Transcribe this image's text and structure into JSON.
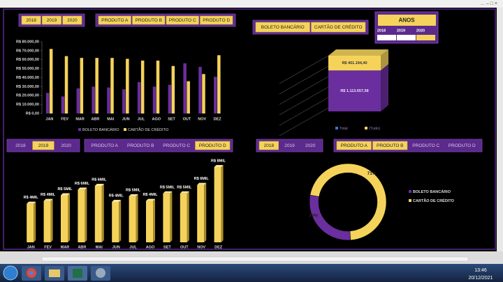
{
  "window": {
    "controls": "… – □ ×"
  },
  "slicers": [
    {
      "items": [
        "2018",
        "2019",
        "2020"
      ],
      "selected": [
        0,
        1,
        2
      ]
    },
    {
      "items": [
        "PRODUTO A",
        "PRODUTO B",
        "PRODUTO C",
        "PRODUTO D"
      ],
      "selected": [
        0,
        1,
        2,
        3
      ]
    },
    {
      "items": [
        "BOLETO BANCÁRIO",
        "CARTÃO DE CRÉDITO"
      ],
      "selected": [
        0,
        1
      ]
    },
    {
      "items": [
        "2018",
        "2019",
        "2020"
      ],
      "selected": [
        1
      ]
    },
    {
      "items": [
        "PRODUTO A",
        "PRODUTO B",
        "PRODUTO C",
        "PRODUTO D"
      ],
      "selected": [
        3
      ]
    },
    {
      "items": [
        "2018",
        "2019",
        "2020"
      ],
      "selected": [
        0
      ]
    },
    {
      "items": [
        "PRODUTO A",
        "PRODUTO B",
        "PRODUTO C",
        "PRODUTO D"
      ],
      "selected": [
        0,
        1
      ]
    }
  ],
  "timeline": {
    "title": "ANOS",
    "labels": [
      "2018",
      "2019",
      "2020"
    ]
  },
  "chart_data": [
    {
      "type": "bar",
      "categories": [
        "JAN",
        "FEV",
        "MAR",
        "ABR",
        "MAI",
        "JUN",
        "JUL",
        "AGO",
        "SET",
        "OUT",
        "NOV",
        "DEZ"
      ],
      "series": [
        {
          "name": "BOLETO BANCÁRIO",
          "color": "#6a2e9e",
          "values": [
            23000,
            19000,
            28000,
            30000,
            29000,
            27000,
            35000,
            30000,
            32000,
            56000,
            52000,
            41000
          ]
        },
        {
          "name": "CARTÃO DE CRÉDITO",
          "color": "#f5d35b",
          "values": [
            72000,
            64000,
            62000,
            62000,
            62000,
            61000,
            59000,
            59000,
            53000,
            36000,
            44000,
            65000
          ]
        }
      ],
      "ylim": [
        0,
        80000
      ],
      "yticks": [
        {
          "value": 0,
          "label": "R$ 0,00"
        },
        {
          "value": 10000,
          "label": "R$ 10.000,00"
        },
        {
          "value": 20000,
          "label": "R$ 20.000,00"
        },
        {
          "value": 30000,
          "label": "R$ 30.000,00"
        },
        {
          "value": 40000,
          "label": "R$ 40.000,00"
        },
        {
          "value": 50000,
          "label": "R$ 50.000,00"
        },
        {
          "value": 60000,
          "label": "R$ 60.000,00"
        },
        {
          "value": 70000,
          "label": "R$ 70.000,00"
        },
        {
          "value": 80000,
          "label": "R$ 80.000,00"
        }
      ]
    },
    {
      "type": "stacked3d",
      "series": [
        {
          "name": "Total",
          "color": "#6a2e9e",
          "values": [
            1113657.58
          ],
          "value_labels": [
            "R$ 1.113.657,58"
          ]
        },
        {
          "name": "(Tudo)",
          "color": "#f5d35b",
          "values": [
            401194.4
          ],
          "value_labels": [
            "R$ 401.194,40"
          ]
        }
      ]
    },
    {
      "type": "bar3d",
      "categories": [
        "JAN",
        "FEV",
        "MAR",
        "ABR",
        "MAI",
        "JUN",
        "JUL",
        "AGO",
        "SET",
        "OUT",
        "NOV",
        "DEZ"
      ],
      "values": [
        4100,
        4400,
        5000,
        5600,
        6000,
        4300,
        4900,
        4400,
        5200,
        5200,
        6100,
        8000
      ],
      "value_labels": [
        "R$ 4MIL",
        "R$ 4MIL",
        "R$ 5MIL",
        "R$ 6MIL",
        "R$ 6MIL",
        "R$ 4MIL",
        "R$ 5MIL",
        "R$ 4MIL",
        "R$ 5MIL",
        "R$ 5MIL",
        "R$ 6MIL",
        "R$ 8MIL"
      ],
      "color": "#f5d35b"
    },
    {
      "type": "donut",
      "categories": [
        "BOLETO BANCÁRIO",
        "CARTÃO DE CRÉDITO"
      ],
      "values": [
        29,
        71
      ],
      "value_labels": [
        "29%",
        "71%"
      ],
      "colors": [
        "#6a2e9e",
        "#f5d35b"
      ]
    }
  ],
  "taskbar": {
    "time": "13:46",
    "date": "20/12/2021"
  }
}
